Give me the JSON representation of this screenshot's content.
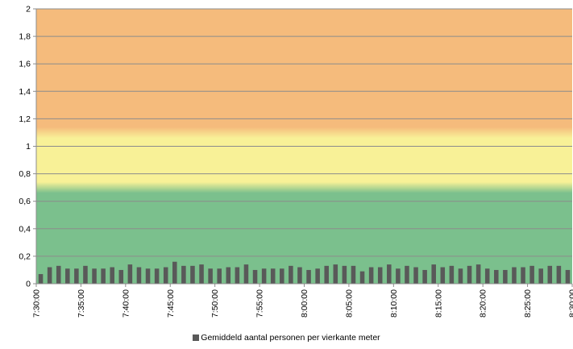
{
  "chart_data": {
    "type": "bar",
    "ylim": [
      0,
      2
    ],
    "yticks": [
      "0",
      "0,2",
      "0,4",
      "0,6",
      "0,8",
      "1",
      "1,2",
      "1,4",
      "1,6",
      "1,8",
      "2"
    ],
    "xticks": [
      "7:30:00",
      "7:35:00",
      "7:40:00",
      "7:45:00",
      "7:50:00",
      "7:55:00",
      "8:00:00",
      "8:05:00",
      "8:10:00",
      "8:15:00",
      "8:20:00",
      "8:25:00",
      "8:30:00"
    ],
    "zones": [
      {
        "from": 0,
        "to": 0.7,
        "color": "#7bc08d"
      },
      {
        "from": 0.7,
        "to": 1.1,
        "color": "#f8f197"
      },
      {
        "from": 1.1,
        "to": 2,
        "color": "#f5bb7c"
      }
    ],
    "bar_color": "#595959",
    "series": [
      {
        "name": "Gemiddeld aantal  personen per vierkante meter",
        "values": [
          0.07,
          0.12,
          0.13,
          0.11,
          0.11,
          0.13,
          0.11,
          0.11,
          0.12,
          0.1,
          0.14,
          0.12,
          0.11,
          0.11,
          0.12,
          0.16,
          0.13,
          0.13,
          0.14,
          0.11,
          0.11,
          0.12,
          0.12,
          0.14,
          0.1,
          0.11,
          0.11,
          0.11,
          0.13,
          0.12,
          0.1,
          0.11,
          0.13,
          0.14,
          0.13,
          0.13,
          0.09,
          0.12,
          0.12,
          0.14,
          0.11,
          0.13,
          0.12,
          0.1,
          0.14,
          0.12,
          0.13,
          0.11,
          0.13,
          0.14,
          0.11,
          0.1,
          0.1,
          0.12,
          0.12,
          0.13,
          0.11,
          0.13,
          0.13,
          0.1
        ]
      }
    ]
  },
  "legend": {
    "label": "Gemiddeld aantal  personen per vierkante meter"
  }
}
